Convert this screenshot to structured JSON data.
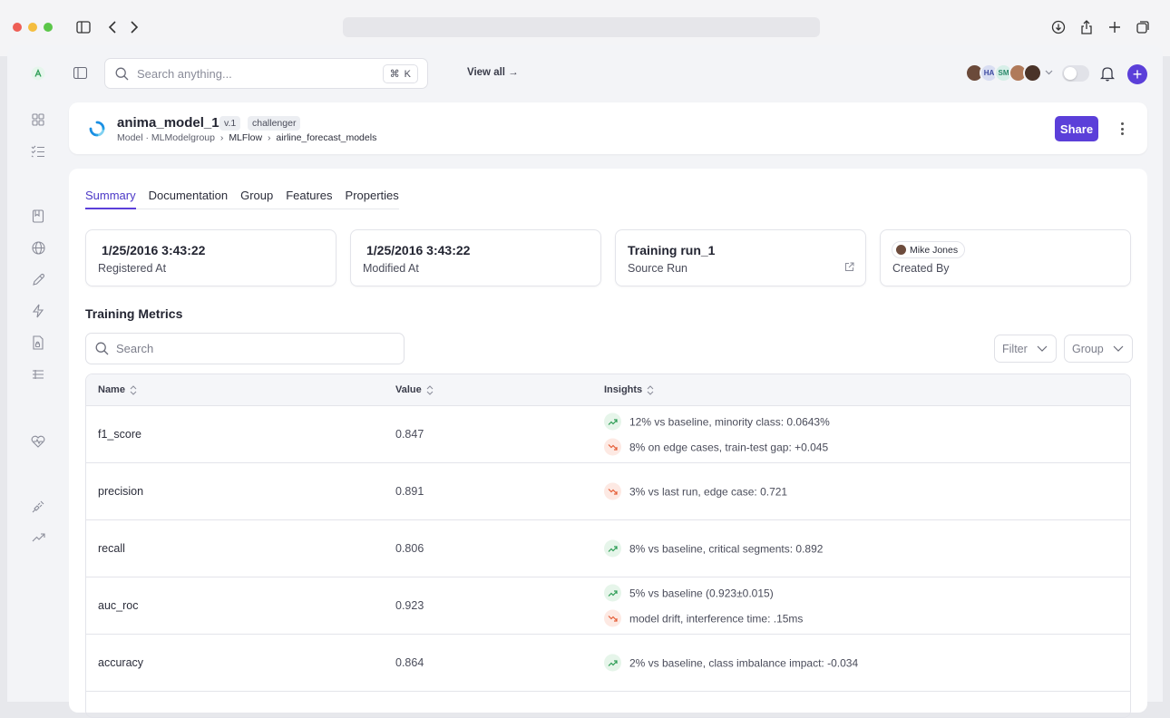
{
  "search": {
    "placeholder": "Search anything...",
    "shortcut_mod": "⌘",
    "shortcut_key": "K"
  },
  "topbar": {
    "view_all": "View all →",
    "avatars": [
      {
        "initials": "",
        "color": "#6b4a3a"
      },
      {
        "initials": "HA",
        "color": "#d8ddf2"
      },
      {
        "initials": "SM",
        "color": "#d7efe8"
      },
      {
        "initials": "",
        "color": "#b07a5a"
      },
      {
        "initials": "",
        "color": "#4a3328"
      }
    ]
  },
  "model": {
    "name": "anima_model_1",
    "version": "v.1",
    "tag": "challenger",
    "crumb_prefix": "Model · MLModelgroup",
    "crumb_mid": "MLFlow",
    "crumb_last": "airline_forecast_models",
    "share": "Share"
  },
  "tabs": [
    "Summary",
    "Documentation",
    "Group",
    "Features",
    "Properties"
  ],
  "cards": [
    {
      "value": "1/25/2016 3:43:22",
      "label": "Registered At"
    },
    {
      "value": "1/25/2016 3:43:22",
      "label": "Modified At"
    },
    {
      "value": "Training run_1",
      "label": "Source Run"
    },
    {
      "user": "Mike Jones",
      "label": "Created By"
    }
  ],
  "metrics": {
    "title": "Training Metrics",
    "search_placeholder": "Search",
    "filter": "Filter",
    "group": "Group",
    "columns": [
      "Name",
      "Value",
      "Insights"
    ],
    "rows": [
      {
        "name": "f1_score",
        "value": "0.847",
        "insights": [
          {
            "trend": "up",
            "text": "12% vs baseline, minority class: 0.0643%"
          },
          {
            "trend": "down",
            "text": "8% on edge cases, train-test gap: +0.045"
          }
        ]
      },
      {
        "name": "precision",
        "value": "0.891",
        "insights": [
          {
            "trend": "down",
            "text": "3% vs last run, edge case: 0.721"
          }
        ]
      },
      {
        "name": "recall",
        "value": "0.806",
        "insights": [
          {
            "trend": "up",
            "text": "8% vs baseline, critical segments: 0.892"
          }
        ]
      },
      {
        "name": "auc_roc",
        "value": "0.923",
        "insights": [
          {
            "trend": "up",
            "text": "5% vs baseline (0.923±0.015)"
          },
          {
            "trend": "down",
            "text": "model drift, interference time: .15ms"
          }
        ]
      },
      {
        "name": "accuracy",
        "value": "0.864",
        "insights": [
          {
            "trend": "up",
            "text": "2% vs baseline, class imbalance impact: -0.034"
          }
        ]
      }
    ]
  },
  "colors": {
    "accent": "#5b3fd9",
    "up": "#2f9e57",
    "down": "#e5603a"
  }
}
